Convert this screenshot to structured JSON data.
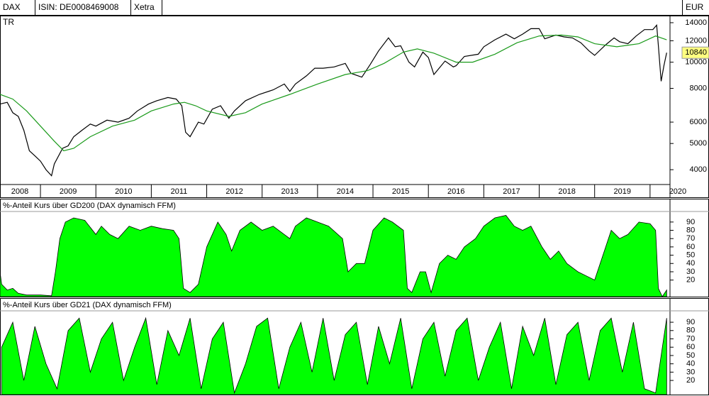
{
  "header": {
    "symbol": "DAX TR",
    "isin": "ISIN: DE0008469008",
    "exchange": "Xetra",
    "currency": "EUR"
  },
  "chart_data": [
    {
      "type": "line",
      "log_scale": true,
      "xlim": [
        2008.27,
        2020.36
      ],
      "ylim": [
        3525,
        14870
      ],
      "yticks": [
        4000,
        5000,
        6000,
        8000,
        10000,
        12000,
        14000
      ],
      "xticks": [
        {
          "value": 2008,
          "label": "2008"
        },
        {
          "value": 2009,
          "label": "2009"
        },
        {
          "value": 2010,
          "label": "2010"
        },
        {
          "value": 2011,
          "label": "2011"
        },
        {
          "value": 2012,
          "label": "2012"
        },
        {
          "value": 2013,
          "label": "2013"
        },
        {
          "value": 2014,
          "label": "2014"
        },
        {
          "value": 2015,
          "label": "2015"
        },
        {
          "value": 2016,
          "label": "2016"
        },
        {
          "value": 2017,
          "label": "2017"
        },
        {
          "value": 2018,
          "label": "2018"
        },
        {
          "value": 2019,
          "label": "2019"
        },
        {
          "value": 2020,
          "label": "2020"
        }
      ],
      "last_value": 10840,
      "series": [
        {
          "color": "#000000",
          "x": [
            2008.27,
            2008.4,
            2008.5,
            2008.6,
            2008.7,
            2008.8,
            2008.9,
            2009.0,
            2009.1,
            2009.2,
            2009.25,
            2009.4,
            2009.5,
            2009.6,
            2009.75,
            2009.9,
            2010.0,
            2010.2,
            2010.4,
            2010.6,
            2010.75,
            2010.95,
            2011.1,
            2011.3,
            2011.45,
            2011.55,
            2011.62,
            2011.7,
            2011.85,
            2011.95,
            2012.1,
            2012.25,
            2012.4,
            2012.5,
            2012.7,
            2012.95,
            2013.2,
            2013.4,
            2013.5,
            2013.6,
            2013.8,
            2013.95,
            2014.1,
            2014.3,
            2014.5,
            2014.6,
            2014.8,
            2014.95,
            2015.1,
            2015.28,
            2015.4,
            2015.5,
            2015.65,
            2015.75,
            2015.9,
            2016.0,
            2016.1,
            2016.3,
            2016.45,
            2016.5,
            2016.65,
            2016.9,
            2017.0,
            2017.2,
            2017.4,
            2017.55,
            2017.7,
            2017.85,
            2018.0,
            2018.1,
            2018.3,
            2018.45,
            2018.6,
            2018.75,
            2018.9,
            2019.0,
            2019.2,
            2019.35,
            2019.45,
            2019.6,
            2019.75,
            2019.9,
            2020.05,
            2020.12,
            2020.15,
            2020.2,
            2020.25,
            2020.3
          ],
          "values": [
            7000,
            7100,
            6500,
            6300,
            5600,
            4700,
            4500,
            4300,
            4000,
            3800,
            4200,
            4800,
            4900,
            5300,
            5600,
            5900,
            5800,
            6100,
            6000,
            6200,
            6600,
            7000,
            7200,
            7400,
            7300,
            6900,
            5500,
            5300,
            6000,
            5900,
            6700,
            6900,
            6200,
            6600,
            7200,
            7600,
            7900,
            8300,
            7800,
            8300,
            8900,
            9500,
            9500,
            9600,
            9900,
            9100,
            8800,
            9800,
            11000,
            12300,
            11400,
            11500,
            10000,
            9600,
            10900,
            10400,
            9000,
            10100,
            9600,
            9700,
            10500,
            10700,
            11400,
            12100,
            12700,
            12200,
            12700,
            13300,
            13300,
            12200,
            12600,
            12400,
            12300,
            11800,
            11000,
            10600,
            11600,
            12300,
            11900,
            11700,
            12500,
            13200,
            13200,
            13700,
            11500,
            8500,
            9700,
            10840
          ]
        },
        {
          "color": "#1a9a1a",
          "x": [
            2008.27,
            2008.5,
            2008.75,
            2009.0,
            2009.25,
            2009.42,
            2009.6,
            2009.9,
            2010.3,
            2010.7,
            2011.0,
            2011.4,
            2011.6,
            2011.8,
            2012.0,
            2012.4,
            2012.7,
            2013.0,
            2013.5,
            2014.0,
            2014.5,
            2014.9,
            2015.2,
            2015.55,
            2015.8,
            2016.1,
            2016.5,
            2016.8,
            2017.2,
            2017.6,
            2018.0,
            2018.4,
            2018.7,
            2019.0,
            2019.4,
            2019.8,
            2020.1,
            2020.3
          ],
          "values": [
            7600,
            7300,
            6600,
            5800,
            5100,
            4700,
            4800,
            5300,
            5800,
            6100,
            6600,
            7000,
            7100,
            6900,
            6600,
            6300,
            6500,
            7000,
            7600,
            8300,
            9000,
            9300,
            9900,
            10900,
            11200,
            10800,
            10000,
            10000,
            10700,
            11800,
            12500,
            12600,
            12400,
            11700,
            11400,
            11700,
            12500,
            12100
          ]
        }
      ]
    },
    {
      "type": "area",
      "title": "%-Anteil Kurs über GD200 (DAX dynamisch FFM)",
      "xlim": [
        2008.27,
        2020.36
      ],
      "ylim": [
        0,
        101
      ],
      "yticks": [
        20,
        30,
        40,
        50,
        60,
        70,
        80,
        90
      ],
      "color": "#00ff00",
      "x": [
        2008.27,
        2008.3,
        2008.4,
        2008.5,
        2008.6,
        2008.75,
        2008.85,
        2009.0,
        2009.2,
        2009.27,
        2009.35,
        2009.45,
        2009.6,
        2009.8,
        2010.0,
        2010.1,
        2010.25,
        2010.4,
        2010.6,
        2010.8,
        2011.0,
        2011.2,
        2011.4,
        2011.5,
        2011.58,
        2011.7,
        2011.85,
        2012.0,
        2012.2,
        2012.35,
        2012.45,
        2012.6,
        2012.8,
        2013.0,
        2013.2,
        2013.4,
        2013.5,
        2013.6,
        2013.8,
        2014.0,
        2014.2,
        2014.45,
        2014.55,
        2014.7,
        2014.85,
        2015.0,
        2015.2,
        2015.35,
        2015.55,
        2015.62,
        2015.7,
        2015.85,
        2015.95,
        2016.05,
        2016.2,
        2016.35,
        2016.5,
        2016.65,
        2016.85,
        2017.0,
        2017.2,
        2017.4,
        2017.55,
        2017.7,
        2017.85,
        2018.05,
        2018.2,
        2018.35,
        2018.5,
        2018.7,
        2018.85,
        2019.0,
        2019.15,
        2019.3,
        2019.45,
        2019.6,
        2019.8,
        2020.0,
        2020.1,
        2020.15,
        2020.22,
        2020.3
      ],
      "values": [
        30,
        15,
        8,
        10,
        4,
        2,
        2,
        2,
        1,
        30,
        70,
        90,
        95,
        92,
        75,
        85,
        75,
        70,
        85,
        80,
        85,
        82,
        80,
        70,
        10,
        5,
        15,
        60,
        90,
        75,
        55,
        80,
        90,
        80,
        85,
        75,
        70,
        85,
        95,
        90,
        85,
        70,
        30,
        40,
        40,
        80,
        95,
        90,
        80,
        10,
        5,
        30,
        30,
        5,
        40,
        50,
        45,
        60,
        70,
        85,
        95,
        98,
        85,
        80,
        85,
        60,
        45,
        55,
        40,
        30,
        25,
        20,
        50,
        80,
        70,
        75,
        90,
        88,
        80,
        10,
        0,
        8
      ]
    },
    {
      "type": "area",
      "title": "%-Anteil Kurs über GD21 (DAX dynamisch FFM)",
      "xlim": [
        2008.27,
        2020.36
      ],
      "ylim": [
        3,
        102
      ],
      "yticks": [
        20,
        30,
        40,
        50,
        60,
        70,
        80,
        90
      ],
      "color": "#00ff00",
      "x": [
        2008.3,
        2008.5,
        2008.7,
        2008.9,
        2009.1,
        2009.3,
        2009.5,
        2009.7,
        2009.9,
        2010.1,
        2010.3,
        2010.5,
        2010.7,
        2010.9,
        2011.1,
        2011.3,
        2011.5,
        2011.7,
        2011.9,
        2012.1,
        2012.3,
        2012.5,
        2012.7,
        2012.9,
        2013.1,
        2013.3,
        2013.5,
        2013.7,
        2013.9,
        2014.1,
        2014.3,
        2014.5,
        2014.7,
        2014.9,
        2015.1,
        2015.3,
        2015.5,
        2015.7,
        2015.9,
        2016.1,
        2016.3,
        2016.5,
        2016.7,
        2016.9,
        2017.1,
        2017.3,
        2017.5,
        2017.7,
        2017.9,
        2018.1,
        2018.3,
        2018.5,
        2018.7,
        2018.9,
        2019.1,
        2019.3,
        2019.5,
        2019.7,
        2019.9,
        2020.1,
        2020.3
      ],
      "values": [
        60,
        90,
        20,
        85,
        40,
        10,
        80,
        95,
        30,
        70,
        90,
        20,
        60,
        95,
        15,
        80,
        50,
        95,
        10,
        70,
        90,
        5,
        40,
        85,
        95,
        10,
        60,
        90,
        30,
        95,
        20,
        75,
        90,
        15,
        85,
        40,
        95,
        10,
        70,
        90,
        25,
        80,
        95,
        20,
        60,
        90,
        10,
        85,
        50,
        95,
        15,
        75,
        90,
        20,
        80,
        95,
        30,
        90,
        10,
        5,
        95
      ]
    }
  ]
}
